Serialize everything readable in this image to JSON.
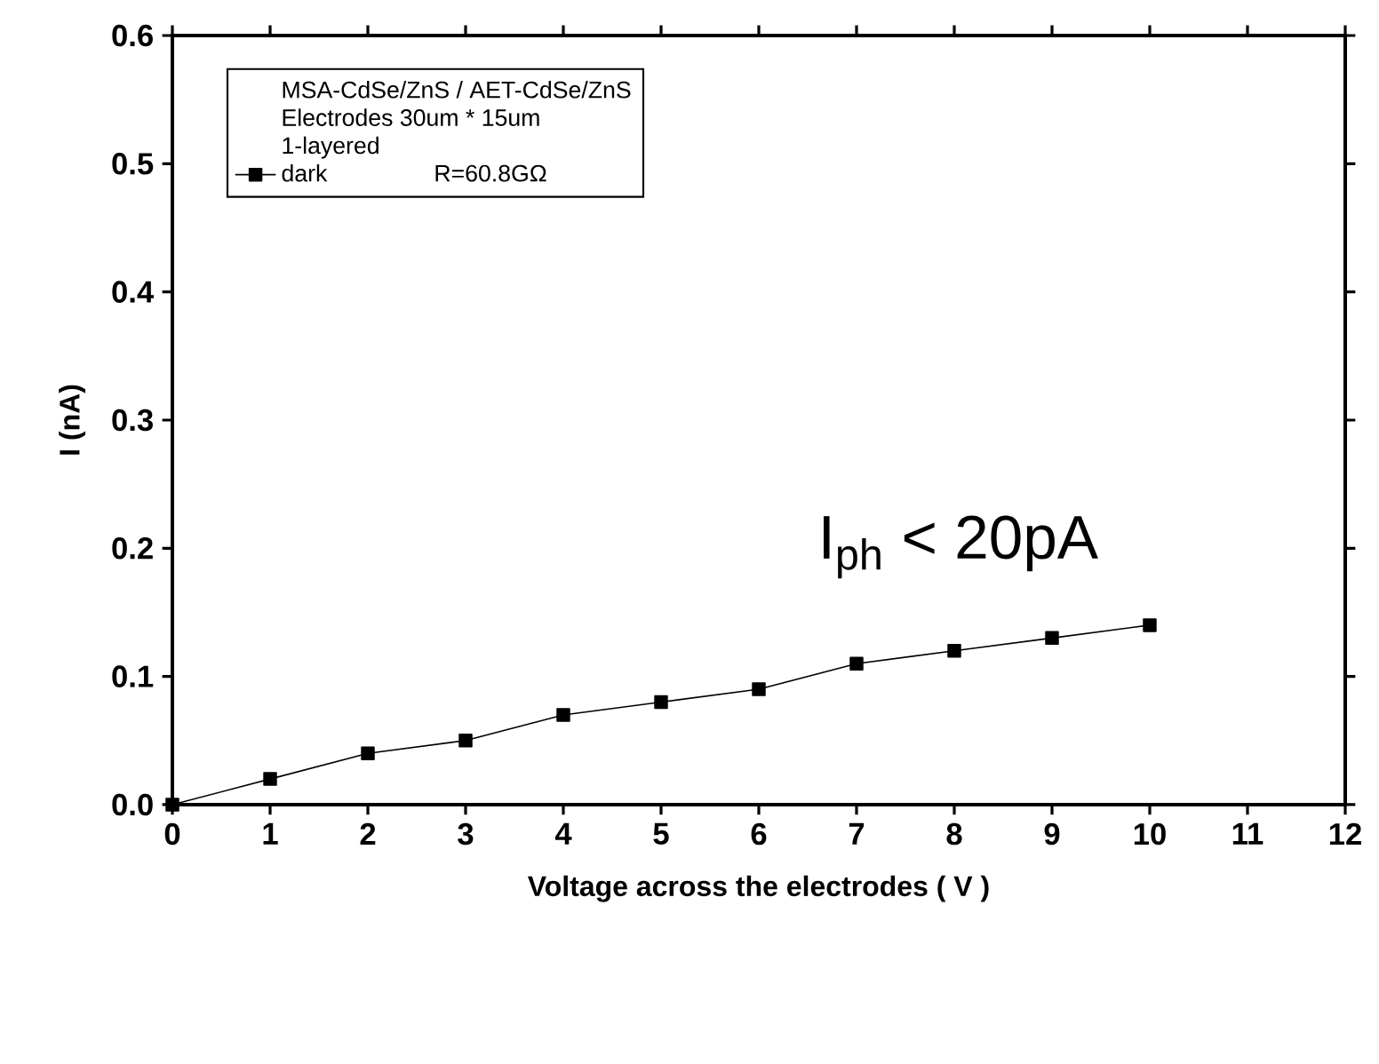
{
  "chart_data": {
    "type": "line",
    "xlabel": "Voltage across the electrodes ( V )",
    "ylabel": "I (nA)",
    "x": [
      0,
      1,
      2,
      3,
      4,
      5,
      6,
      7,
      8,
      9,
      10
    ],
    "series": [
      {
        "name": "dark",
        "color": "#000000",
        "values": [
          0,
          0.02,
          0.04,
          0.05,
          0.07,
          0.08,
          0.09,
          0.11,
          0.12,
          0.13,
          0.14
        ]
      }
    ],
    "legend_title": "MSA-CdSe/ZnS  /  AET-CdSe/ZnS",
    "annotations": [
      "Electrodes  30um * 15um",
      "1-layered",
      "R=60.8GΩ",
      "I$_{ph}$ < 20pA"
    ],
    "xlim": [
      0,
      12
    ],
    "ylim": [
      0,
      0.6
    ],
    "xticks": [
      0,
      1,
      2,
      3,
      4,
      5,
      6,
      7,
      8,
      9,
      10,
      11,
      12
    ],
    "yticks": [
      {
        "value": 0,
        "label": "0.0"
      },
      0.1,
      0.2,
      0.3,
      0.4,
      0.5,
      0.6
    ],
    "marker": "square",
    "line_style": "solid",
    "grid": false,
    "legend": "top left"
  }
}
